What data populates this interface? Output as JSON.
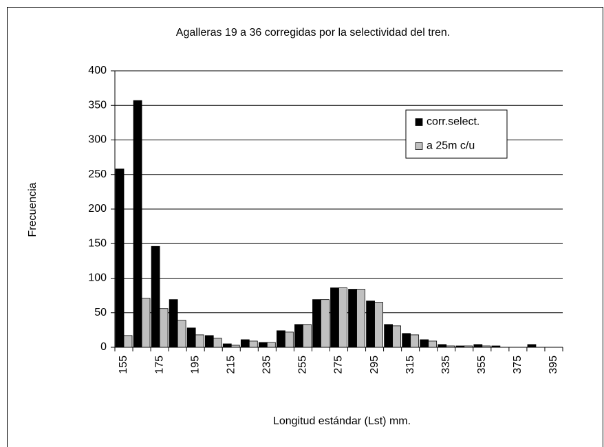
{
  "chart_data": {
    "type": "bar",
    "title": "Agalleras 19 a 36 corregidas por la selectividad del tren.",
    "x_label": "Longitud estándar (Lst) mm.",
    "y_label": "Frecuencia",
    "categories": [
      "155",
      null,
      "175",
      null,
      "195",
      null,
      "215",
      null,
      "235",
      null,
      "255",
      null,
      "275",
      null,
      "295",
      null,
      "315",
      null,
      "335",
      null,
      "355",
      null,
      "375",
      null,
      "395"
    ],
    "series": [
      {
        "name": "corr.select.",
        "color": "#000000",
        "values": [
          258,
          357,
          146,
          69,
          28,
          17,
          5,
          11,
          7,
          24,
          33,
          69,
          86,
          84,
          67,
          33,
          20,
          11,
          4,
          2,
          4,
          2,
          0,
          4,
          0
        ]
      },
      {
        "name": "a 25m c/u",
        "color": "#c0c0c0",
        "values": [
          17,
          71,
          56,
          39,
          18,
          13,
          3,
          9,
          7,
          22,
          33,
          69,
          86,
          84,
          65,
          31,
          18,
          9,
          2,
          2,
          2,
          0,
          0,
          0,
          0
        ]
      }
    ],
    "ylim": [
      0,
      400
    ],
    "yticks": [
      0,
      50,
      100,
      150,
      200,
      250,
      300,
      350,
      400
    ],
    "grid": true
  }
}
